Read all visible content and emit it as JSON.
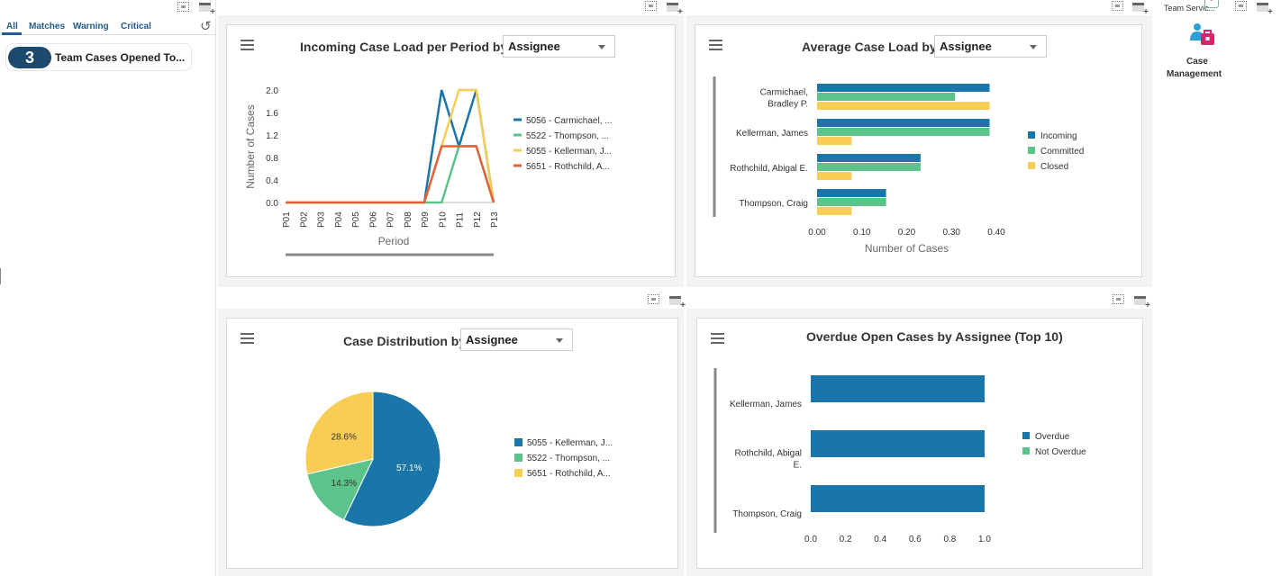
{
  "filters": {
    "tabs": [
      "All",
      "Matches",
      "Warning",
      "Critical"
    ]
  },
  "watchlist": {
    "count": "3",
    "label": "Team Cases Opened To..."
  },
  "app_panel": {
    "header": "Team Servic...",
    "app_label_line1": "Case",
    "app_label_line2": "Management"
  },
  "chart1": {
    "title": "Incoming Case Load per Period by",
    "dropdown": "Assignee"
  },
  "chart2": {
    "title": "Average Case Load by",
    "dropdown": "Assignee"
  },
  "chart3": {
    "title": "Case Distribution by",
    "dropdown": "Assignee"
  },
  "chart4": {
    "title": "Overdue Open Cases by Assignee (Top 10)"
  },
  "colors": {
    "blue": "#1a75a8",
    "green": "#5cc48a",
    "yellow": "#f7cd56",
    "orange": "#e2633a"
  },
  "chart_data": [
    {
      "type": "line",
      "title": "Incoming Case Load per Period by Assignee",
      "xlabel": "Period",
      "ylabel": "Number of Cases",
      "categories": [
        "P01",
        "P02",
        "P03",
        "P04",
        "P05",
        "P06",
        "P07",
        "P08",
        "P09",
        "P10",
        "P11",
        "P12",
        "P13"
      ],
      "ylim": [
        0,
        2.0
      ],
      "yticks": [
        "0.0",
        "0.4",
        "0.8",
        "1.2",
        "1.6",
        "2.0"
      ],
      "series": [
        {
          "name": "5056 - Carmichael, ...",
          "color": "#1a75a8",
          "values": [
            0,
            0,
            0,
            0,
            0,
            0,
            0,
            0,
            0,
            2,
            1,
            2,
            0
          ]
        },
        {
          "name": "5522 - Thompson, ...",
          "color": "#5cc48a",
          "values": [
            0,
            0,
            0,
            0,
            0,
            0,
            0,
            0,
            0,
            0,
            1,
            1,
            0
          ]
        },
        {
          "name": "5055 - Kellerman, J...",
          "color": "#f7cd56",
          "values": [
            0,
            0,
            0,
            0,
            0,
            0,
            0,
            0,
            0,
            1,
            2,
            2,
            0
          ]
        },
        {
          "name": "5651 - Rothchild, A...",
          "color": "#e2633a",
          "values": [
            0,
            0,
            0,
            0,
            0,
            0,
            0,
            0,
            0,
            1,
            1,
            1,
            0
          ]
        }
      ]
    },
    {
      "type": "bar",
      "orientation": "horizontal",
      "title": "Average Case Load by Assignee",
      "xlabel": "Number of Cases",
      "categories": [
        [
          "Carmichael,",
          "Bradley P."
        ],
        [
          "Kellerman, James"
        ],
        [
          "Rothchild, Abigal E."
        ],
        [
          "Thompson, Craig"
        ]
      ],
      "xlim": [
        0,
        0.4
      ],
      "xticks": [
        "0.00",
        "0.10",
        "0.20",
        "0.30",
        "0.40"
      ],
      "series": [
        {
          "name": "Incoming",
          "color": "#1a75a8",
          "values": [
            0.385,
            0.385,
            0.231,
            0.154
          ]
        },
        {
          "name": "Committed",
          "color": "#5cc48a",
          "values": [
            0.308,
            0.385,
            0.231,
            0.154
          ]
        },
        {
          "name": "Closed",
          "color": "#f7cd56",
          "values": [
            0.385,
            0.077,
            0.077,
            0.077
          ]
        }
      ]
    },
    {
      "type": "pie",
      "title": "Case Distribution by Assignee",
      "slices": [
        {
          "name": "5055 - Kellerman, J...",
          "value": 57.1,
          "label": "57.1%",
          "color": "#1a75a8"
        },
        {
          "name": "5522 - Thompson, ...",
          "value": 14.3,
          "label": "14.3%",
          "color": "#5cc48a"
        },
        {
          "name": "5651 - Rothchild, A...",
          "value": 28.6,
          "label": "28.6%",
          "color": "#f7cd56"
        }
      ]
    },
    {
      "type": "bar",
      "orientation": "horizontal",
      "title": "Overdue Open Cases by Assignee (Top 10)",
      "categories": [
        [
          "Kellerman, James"
        ],
        [
          "Rothchild, Abigal",
          "E."
        ],
        [
          "Thompson, Craig"
        ]
      ],
      "xlim": [
        0,
        1.0
      ],
      "xticks": [
        "0.0",
        "0.2",
        "0.4",
        "0.6",
        "0.8",
        "1.0"
      ],
      "series": [
        {
          "name": "Overdue",
          "color": "#1a75a8",
          "values": [
            1.0,
            1.0,
            1.0
          ]
        },
        {
          "name": "Not Overdue",
          "color": "#5cc48a",
          "values": [
            0,
            0,
            0
          ]
        }
      ]
    }
  ]
}
